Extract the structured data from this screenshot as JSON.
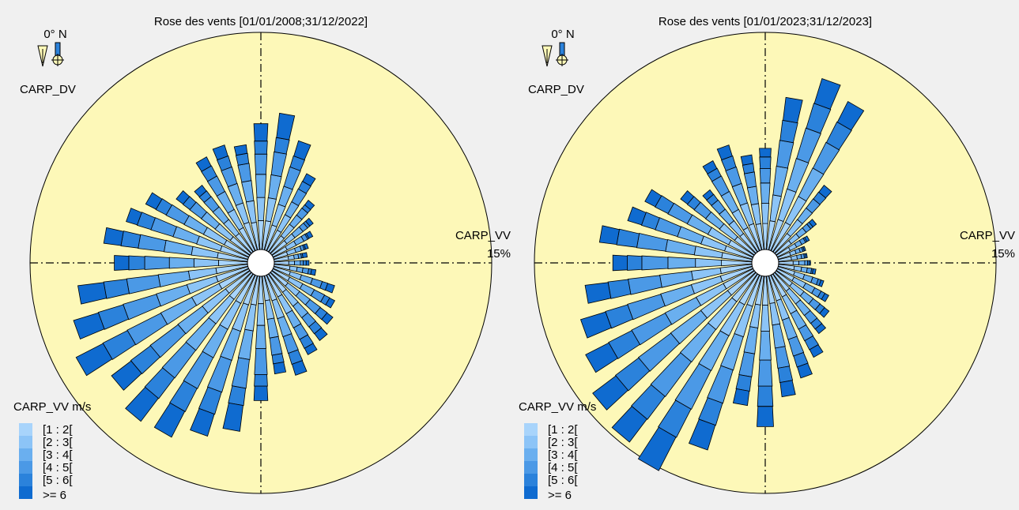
{
  "colors": {
    "background": "#f0f0f0",
    "disk": "#fdf8b8",
    "outline": "#000000",
    "speed_bins": [
      "#a8d4fb",
      "#8cc4f7",
      "#6aafef",
      "#4b99e6",
      "#2b82db",
      "#0f6bd0"
    ]
  },
  "charts": [
    {
      "title": "Rose des vents [01/01/2008;31/12/2022]",
      "north_label": "0° N",
      "direction_label": "CARP_DV",
      "speed_axis_label": "CARP_VV",
      "ring_label": "15%",
      "legend_title": "CARP_VV m/s",
      "legend_items": [
        "[1 : 2[",
        "[2 : 3[",
        "[3 : 4[",
        "[4 : 5[",
        "[5 : 6[",
        ">= 6"
      ],
      "icons": [
        "wind-vane-icon",
        "north-arrow-icon"
      ]
    },
    {
      "title": "Rose des vents [01/01/2023;31/12/2023]",
      "north_label": "0° N",
      "direction_label": "CARP_DV",
      "speed_axis_label": "CARP_VV",
      "ring_label": "15%",
      "legend_title": "CARP_VV m/s",
      "legend_items": [
        "[1 : 2[",
        "[2 : 3[",
        "[3 : 4[",
        "[4 : 5[",
        "[5 : 6[",
        ">= 6"
      ],
      "icons": [
        "wind-vane-icon",
        "north-arrow-icon"
      ]
    }
  ],
  "chart_data": [
    {
      "type": "wind-rose",
      "title": "Rose des vents [01/01/2008;31/12/2022]",
      "r_max_percent": 15,
      "grid": true,
      "legend_position": "bottom-left",
      "bins": [
        "[1 : 2[",
        "[2 : 3[",
        "[3 : 4[",
        "[4 : 5[",
        "[5 : 6[",
        ">= 6"
      ],
      "directions_deg": [
        0,
        10,
        20,
        30,
        40,
        50,
        60,
        70,
        80,
        90,
        100,
        110,
        120,
        130,
        140,
        150,
        160,
        170,
        180,
        190,
        200,
        210,
        220,
        230,
        240,
        250,
        260,
        270,
        280,
        290,
        300,
        310,
        320,
        330,
        340,
        350
      ],
      "cumulative_percent": [
        [
          2.0,
          3.6,
          5.2,
          6.6,
          7.5,
          8.7
        ],
        [
          2.0,
          3.6,
          5.2,
          6.8,
          7.8,
          9.5
        ],
        [
          1.8,
          3.3,
          4.6,
          6.0,
          6.8,
          7.9
        ],
        [
          1.6,
          2.8,
          3.8,
          4.8,
          5.4,
          6.0
        ],
        [
          1.4,
          2.4,
          3.2,
          3.8,
          4.1,
          4.5
        ],
        [
          1.3,
          2.0,
          2.7,
          3.1,
          3.3,
          3.6
        ],
        [
          1.1,
          1.8,
          2.4,
          2.7,
          2.8,
          3.1
        ],
        [
          1.0,
          1.6,
          2.0,
          2.2,
          2.3,
          2.5
        ],
        [
          1.0,
          1.4,
          1.7,
          1.9,
          2.0,
          2.3
        ],
        [
          1.0,
          1.4,
          1.8,
          2.0,
          2.2,
          2.4
        ],
        [
          1.1,
          1.6,
          2.0,
          2.4,
          2.6,
          2.9
        ],
        [
          1.2,
          2.0,
          2.8,
          3.5,
          3.9,
          4.4
        ],
        [
          1.3,
          2.3,
          3.2,
          4.0,
          4.4,
          4.8
        ],
        [
          1.4,
          2.4,
          3.3,
          4.2,
          4.8,
          5.3
        ],
        [
          1.6,
          2.8,
          3.8,
          4.6,
          5.2,
          5.8
        ],
        [
          1.7,
          3.0,
          4.1,
          5.0,
          5.7,
          6.2
        ],
        [
          1.8,
          3.1,
          4.4,
          5.6,
          6.4,
          7.2
        ],
        [
          1.7,
          3.0,
          4.3,
          5.5,
          6.1,
          6.8
        ],
        [
          1.9,
          3.4,
          5.0,
          6.8,
          7.6,
          8.6
        ],
        [
          2.0,
          3.8,
          5.8,
          7.8,
          9.0,
          10.8
        ],
        [
          2.1,
          4.0,
          6.1,
          8.4,
          10.0,
          11.6
        ],
        [
          2.2,
          4.2,
          6.4,
          8.8,
          10.6,
          12.6
        ],
        [
          2.2,
          4.3,
          6.6,
          9.0,
          10.8,
          12.8
        ],
        [
          2.1,
          4.1,
          6.2,
          8.6,
          10.3,
          12.0
        ],
        [
          2.3,
          4.4,
          6.8,
          9.4,
          11.3,
          13.4
        ],
        [
          2.3,
          4.4,
          6.6,
          9.0,
          10.8,
          12.6
        ],
        [
          2.2,
          4.1,
          6.2,
          8.4,
          10.0,
          11.8
        ],
        [
          2.0,
          3.7,
          5.4,
          7.1,
          8.2,
          9.2
        ],
        [
          2.1,
          3.9,
          5.8,
          7.6,
          8.8,
          10.0
        ],
        [
          2.0,
          3.7,
          5.4,
          7.0,
          8.0,
          8.8
        ],
        [
          1.9,
          3.5,
          5.0,
          6.4,
          7.2,
          8.0
        ],
        [
          1.7,
          3.0,
          4.2,
          5.2,
          5.8,
          6.4
        ],
        [
          1.6,
          2.8,
          3.9,
          4.8,
          5.3,
          5.8
        ],
        [
          1.8,
          3.2,
          4.6,
          5.8,
          6.6,
          7.3
        ],
        [
          2.0,
          3.4,
          4.8,
          6.0,
          6.8,
          7.6
        ],
        [
          1.9,
          3.4,
          4.8,
          6.0,
          6.7,
          7.3
        ]
      ]
    },
    {
      "type": "wind-rose",
      "title": "Rose des vents [01/01/2023;31/12/2023]",
      "r_max_percent": 15,
      "grid": true,
      "legend_position": "bottom-left",
      "bins": [
        "[1 : 2[",
        "[2 : 3[",
        "[3 : 4[",
        "[4 : 5[",
        "[5 : 6[",
        ">= 6"
      ],
      "directions_deg": [
        0,
        10,
        20,
        30,
        40,
        50,
        60,
        70,
        80,
        90,
        100,
        110,
        120,
        130,
        140,
        150,
        160,
        170,
        180,
        190,
        200,
        210,
        220,
        230,
        240,
        250,
        260,
        270,
        280,
        290,
        300,
        310,
        320,
        330,
        340,
        350
      ],
      "cumulative_percent": [
        [
          1.8,
          3.2,
          4.6,
          5.6,
          6.4,
          7.0
        ],
        [
          2.0,
          3.8,
          5.8,
          7.6,
          9.0,
          10.6
        ],
        [
          2.2,
          4.4,
          6.6,
          8.8,
          10.6,
          12.4
        ],
        [
          2.2,
          4.2,
          6.4,
          8.4,
          10.0,
          11.6
        ],
        [
          1.6,
          2.8,
          3.8,
          4.6,
          5.2,
          5.8
        ],
        [
          1.3,
          2.0,
          2.6,
          3.0,
          3.2,
          3.5
        ],
        [
          1.0,
          1.5,
          1.9,
          2.2,
          2.3,
          2.5
        ],
        [
          0.9,
          1.3,
          1.6,
          1.8,
          1.9,
          2.0
        ],
        [
          0.9,
          1.3,
          1.6,
          1.8,
          1.9,
          2.0
        ],
        [
          1.0,
          1.4,
          1.8,
          2.0,
          2.1,
          2.2
        ],
        [
          1.1,
          1.6,
          2.0,
          2.3,
          2.4,
          2.6
        ],
        [
          1.2,
          1.9,
          2.5,
          2.9,
          3.1,
          3.3
        ],
        [
          1.3,
          2.2,
          2.9,
          3.4,
          3.7,
          4.0
        ],
        [
          1.4,
          2.4,
          3.2,
          3.8,
          4.2,
          4.6
        ],
        [
          1.5,
          2.6,
          3.6,
          4.3,
          4.8,
          5.2
        ],
        [
          1.7,
          3.0,
          4.2,
          5.1,
          5.8,
          6.4
        ],
        [
          1.8,
          3.2,
          4.6,
          5.8,
          6.6,
          7.4
        ],
        [
          1.9,
          3.4,
          5.0,
          6.4,
          7.4,
          8.4
        ],
        [
          2.0,
          3.8,
          5.8,
          7.6,
          9.0,
          10.4
        ],
        [
          2.0,
          3.6,
          5.4,
          7.0,
          8.0,
          9.0
        ],
        [
          2.2,
          4.4,
          6.8,
          9.2,
          10.8,
          12.6
        ],
        [
          2.3,
          4.7,
          7.4,
          10.4,
          12.6,
          15.2
        ],
        [
          2.4,
          4.8,
          7.6,
          10.6,
          12.6,
          14.6
        ],
        [
          2.3,
          4.6,
          7.2,
          10.0,
          12.0,
          14.0
        ],
        [
          2.3,
          4.4,
          6.8,
          9.4,
          11.2,
          13.0
        ],
        [
          2.3,
          4.4,
          6.6,
          9.0,
          10.6,
          12.4
        ],
        [
          2.2,
          4.2,
          6.4,
          8.6,
          10.0,
          11.6
        ],
        [
          2.1,
          3.9,
          5.8,
          7.6,
          8.6,
          9.6
        ],
        [
          2.1,
          4.0,
          6.0,
          8.0,
          9.4,
          10.6
        ],
        [
          2.0,
          3.7,
          5.4,
          7.0,
          8.0,
          9.0
        ],
        [
          1.9,
          3.5,
          5.1,
          6.6,
          7.6,
          8.4
        ],
        [
          1.7,
          3.0,
          4.2,
          5.2,
          5.8,
          6.4
        ],
        [
          1.6,
          2.7,
          3.7,
          4.5,
          5.0,
          5.4
        ],
        [
          1.8,
          3.2,
          4.6,
          5.8,
          6.4,
          7.0
        ],
        [
          1.9,
          3.4,
          4.8,
          6.0,
          6.8,
          7.6
        ],
        [
          1.8,
          3.2,
          4.4,
          5.4,
          6.0,
          6.6
        ]
      ]
    }
  ]
}
